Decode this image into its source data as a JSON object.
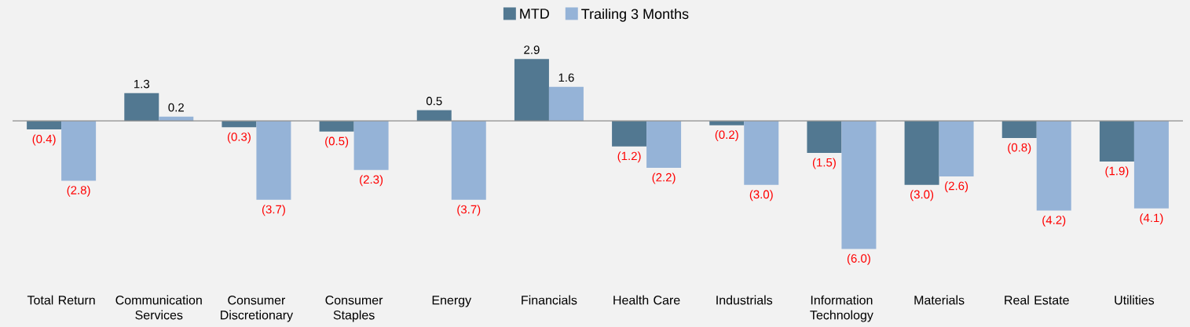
{
  "chart_data": {
    "type": "bar",
    "legend": "top",
    "categories": [
      "Total Return",
      "Communication Services",
      "Consumer Discretionary",
      "Consumer Staples",
      "Energy",
      "Financials",
      "Health Care",
      "Industrials",
      "Information Technology",
      "Materials",
      "Real Estate",
      "Utilities"
    ],
    "series": [
      {
        "name": "MTD",
        "color": "#527891",
        "values": [
          -0.4,
          1.3,
          -0.3,
          -0.5,
          0.5,
          2.9,
          -1.2,
          -0.2,
          -1.5,
          -3.0,
          -0.8,
          -1.9
        ],
        "value_labels": [
          "(0.4)",
          "1.3",
          "(0.3)",
          "(0.5)",
          "0.5",
          "2.9",
          "(1.2)",
          "(0.2)",
          "(1.5)",
          "(3.0)",
          "(0.8)",
          "(1.9)"
        ]
      },
      {
        "name": "Trailing 3 Months",
        "color": "#95b3d7",
        "values": [
          -2.8,
          0.2,
          -3.7,
          -2.3,
          -3.7,
          1.6,
          -2.2,
          -3.0,
          -6.0,
          -2.6,
          -4.2,
          -4.1
        ],
        "value_labels": [
          "(2.8)",
          "0.2",
          "(3.7)",
          "(2.3)",
          "(3.7)",
          "1.6",
          "(2.2)",
          "(3.0)",
          "(6.0)",
          "(2.6)",
          "(4.2)",
          "(4.1)"
        ]
      }
    ]
  }
}
